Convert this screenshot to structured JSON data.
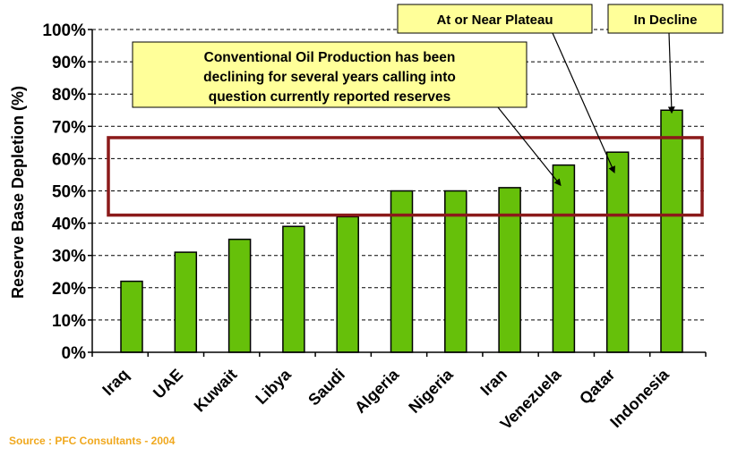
{
  "chart_data": {
    "type": "bar",
    "ylabel": "Reserve Base Depletion (%)",
    "ylim": [
      0,
      100
    ],
    "ytick_labels": [
      "0%",
      "10%",
      "20%",
      "30%",
      "40%",
      "50%",
      "60%",
      "70%",
      "80%",
      "90%",
      "100%"
    ],
    "categories": [
      "Iraq",
      "UAE",
      "Kuwait",
      "Libya",
      "Saudi",
      "Algeria",
      "Nigeria",
      "Iran",
      "Venezuela",
      "Qatar",
      "Indonesia"
    ],
    "values": [
      22,
      31,
      35,
      39,
      42,
      50,
      50,
      51,
      58,
      62,
      75
    ],
    "grid": "horizontal dashed",
    "bar_color": "#66c00a",
    "annotations": [
      {
        "text": "Conventional Oil Production has been declining for several years calling into question currently reported reserves",
        "points_to": "Venezuela"
      },
      {
        "text": "At or Near Plateau",
        "points_to": "Qatar"
      },
      {
        "text": "In Decline",
        "points_to": "Indonesia"
      }
    ],
    "highlight_range": [
      42.5,
      66.5
    ],
    "highlight_color": "#8b1a1a",
    "annotation_fill": "#ffff99"
  },
  "source": "Source : PFC Consultants - 2004"
}
